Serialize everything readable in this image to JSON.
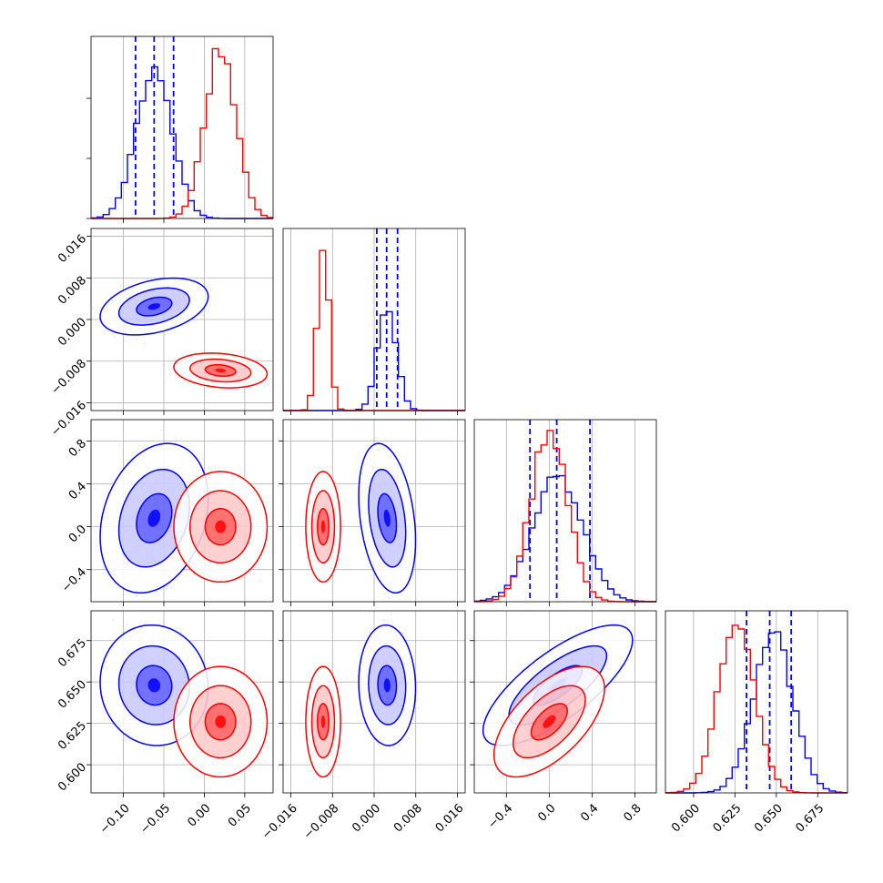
{
  "colors": {
    "series_a": "#0000ff",
    "series_b": "#ff0000"
  },
  "chart_data": {
    "type": "corner",
    "grid": true,
    "parameters": [
      {
        "range": [
          -0.14,
          0.085
        ],
        "ticks": [
          -0.1,
          -0.05,
          0.0,
          0.05
        ],
        "tick_labels": [
          "−0.10",
          "−0.05",
          "0.00",
          "0.05"
        ]
      },
      {
        "range": [
          -0.0175,
          0.0175
        ],
        "ticks": [
          -0.016,
          -0.008,
          0.0,
          0.008,
          0.016
        ],
        "tick_labels": [
          "−0.016",
          "−0.008",
          "0.000",
          "0.008",
          "0.016"
        ]
      },
      {
        "range": [
          -0.7,
          1.0
        ],
        "ticks": [
          -0.4,
          0.0,
          0.4,
          0.8
        ],
        "tick_labels": [
          "−0.4",
          "0.0",
          "0.4",
          "0.8"
        ]
      },
      {
        "range": [
          0.583,
          0.693
        ],
        "ticks": [
          0.6,
          0.625,
          0.65,
          0.675
        ],
        "tick_labels": [
          "0.600",
          "0.625",
          "0.650",
          "0.675"
        ]
      }
    ],
    "series": [
      {
        "color": "#0000ff",
        "mean": [
          -0.062,
          0.0025,
          0.08,
          0.648
        ],
        "sd": [
          0.022,
          0.0018,
          0.23,
          0.012
        ],
        "corr": {
          "0-1": 0.35,
          "0-2": 0.25,
          "0-3": -0.05,
          "1-2": -0.3,
          "1-3": -0.05,
          "2-3": 0.75
        },
        "quantiles": [
          [
            -0.085,
            -0.062,
            -0.038
          ],
          [
            0.0005,
            0.0024,
            0.0045
          ],
          [
            -0.18,
            0.07,
            0.38
          ],
          [
            0.632,
            0.646,
            0.659
          ]
        ]
      },
      {
        "color": "#ff0000",
        "mean": [
          0.02,
          -0.0098,
          0.0,
          0.626
        ],
        "sd": [
          0.019,
          0.0011,
          0.17,
          0.011
        ],
        "corr": {
          "0-1": -0.2,
          "0-2": 0.0,
          "0-3": 0.0,
          "1-2": 0.0,
          "1-3": 0.0,
          "2-3": 0.6
        },
        "quantiles": null
      }
    ]
  }
}
